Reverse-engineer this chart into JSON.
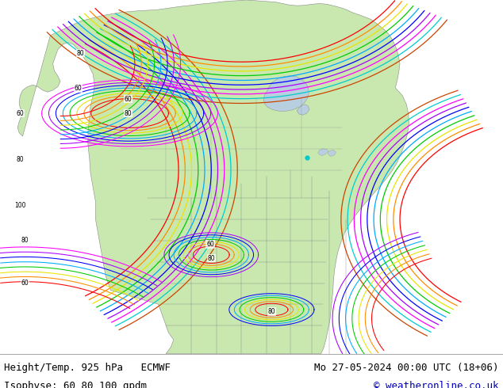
{
  "title_left_line1": "Height/Temp. 925 hPa   ECMWF",
  "title_left_line2": "Isophyse: 60 80 100 gpdm",
  "title_right_line1": "Mo 27-05-2024 00:00 UTC (18+06)",
  "title_right_line2": "© weatheronline.co.uk",
  "bg_color": "#ffffff",
  "ocean_color": "#b8cfe0",
  "land_color": "#c8e8b0",
  "land_dark_color": "#a8c890",
  "border_color": "#888888",
  "text_color_black": "#000000",
  "text_color_blue": "#0000bb",
  "font_size_label": 9,
  "bottom_bar_height": 0.088,
  "contour_colors": [
    "#ff0000",
    "#ff8c00",
    "#e6e600",
    "#00cc00",
    "#00aaff",
    "#0000ff",
    "#aa00ff",
    "#ff00ff",
    "#00cccc",
    "#cc4400"
  ],
  "contour_lw": 0.9,
  "contour_alpha": 1.0
}
